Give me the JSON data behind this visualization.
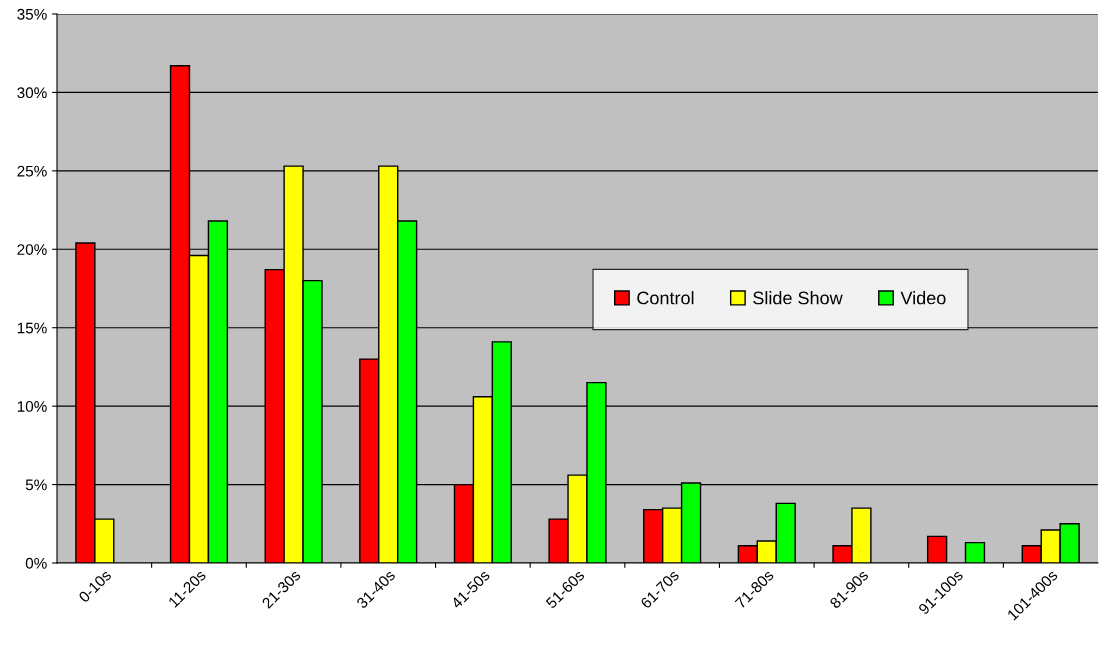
{
  "chart_data": {
    "type": "bar",
    "categories": [
      "0-10s",
      "11-20s",
      "21-30s",
      "31-40s",
      "41-50s",
      "51-60s",
      "61-70s",
      "71-80s",
      "81-90s",
      "91-100s",
      "101-400s"
    ],
    "series": [
      {
        "name": "Control",
        "color": "#ff0000",
        "values": [
          20.4,
          31.7,
          18.7,
          13.0,
          5.0,
          2.8,
          3.4,
          1.1,
          1.1,
          1.7,
          1.1
        ]
      },
      {
        "name": "Slide Show",
        "color": "#ffff00",
        "values": [
          2.8,
          19.6,
          25.3,
          25.3,
          10.6,
          5.6,
          3.5,
          1.4,
          3.5,
          null,
          2.1
        ]
      },
      {
        "name": "Video",
        "color": "#00ff00",
        "values": [
          null,
          21.8,
          18.0,
          21.8,
          14.1,
          11.5,
          5.1,
          3.8,
          null,
          1.3,
          2.5
        ]
      }
    ],
    "ylim": [
      0,
      35
    ],
    "yticks": [
      {
        "value": 0,
        "label": "0%"
      },
      {
        "value": 5,
        "label": "5%"
      },
      {
        "value": 10,
        "label": "10%"
      },
      {
        "value": 15,
        "label": "15%"
      },
      {
        "value": 20,
        "label": "20%"
      },
      {
        "value": 25,
        "label": "25%"
      },
      {
        "value": 30,
        "label": "30%"
      },
      {
        "value": 35,
        "label": "35%"
      }
    ],
    "grid": "y",
    "legend": "center"
  }
}
